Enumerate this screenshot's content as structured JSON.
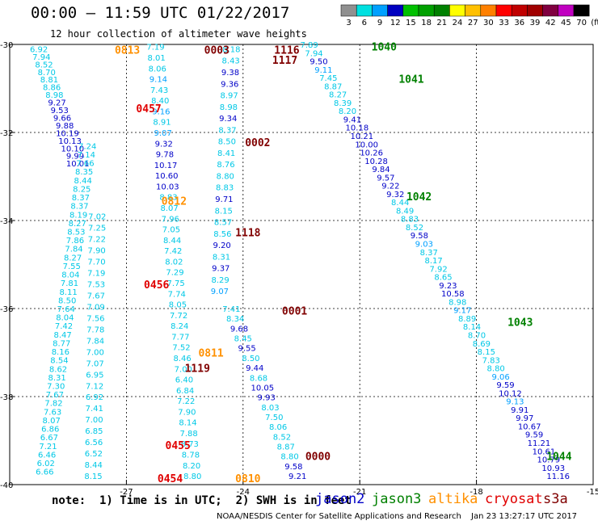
{
  "header": {
    "title": "00:00 – 11:59 UTC 01/22/2017",
    "subtitle": "12 hour collection of altimeter wave heights"
  },
  "color_scale": {
    "labels": [
      "3",
      "6",
      "9",
      "12",
      "15",
      "18",
      "21",
      "24",
      "27",
      "30",
      "33",
      "36",
      "39",
      "42",
      "45",
      "70",
      "(ft)"
    ],
    "colors": [
      "#909090",
      "#00e0e0",
      "#00a0ff",
      "#0000c0",
      "#00c000",
      "#00a000",
      "#008000",
      "#ffff00",
      "#ffc000",
      "#ff8000",
      "#ff0000",
      "#c00000",
      "#a00000",
      "#800040",
      "#c000c0",
      "#000000"
    ]
  },
  "notes": {
    "text": "note:  1) Time is in UTC;  2) SWH is in feet"
  },
  "satellites": [
    {
      "name": "jason2",
      "color": "#0000c8"
    },
    {
      "name": "jason3",
      "color": "#008000"
    },
    {
      "name": "altika",
      "color": "#ff9000"
    },
    {
      "name": "cryosat",
      "color": "#e00000"
    },
    {
      "name": "s3a",
      "color": "#800000"
    }
  ],
  "footer": {
    "credit": "NOAA/NESDIS Center for Satellite Applications and Research",
    "timestamp": "Jan 23 13:27:17 UTC 2017"
  },
  "chart_data": {
    "type": "scatter",
    "xlim": [
      -30,
      -15
    ],
    "ylim": [
      -40,
      -30
    ],
    "xticks": [
      -27,
      -24,
      -21,
      -18,
      -15
    ],
    "yticks": [
      -30,
      -32,
      -34,
      -36,
      -38,
      -40
    ],
    "x_tick_labels": [
      "-27",
      "-24",
      "-21",
      "-18",
      "-15"
    ],
    "y_tick_labels": [
      "-30",
      "-32",
      "-34",
      "-36",
      "-38",
      "-40"
    ],
    "grid": true,
    "value_colors": {
      "low": "#00c8e6",
      "mid": "#00a0ff",
      "high": "#0000c8"
    },
    "tracks": [
      {
        "name": "track-a",
        "x0": -29.25,
        "x1": -28.25,
        "y0": -30.1,
        "y1": -32.7,
        "values": [
          "6.92",
          "7.94",
          "8.52",
          "8.70",
          "8.81",
          "8.86",
          "8.98",
          "9.27",
          "9.53",
          "9.66",
          "9.88",
          "10.19",
          "10.13",
          "10.10",
          "9.99",
          "10.01"
        ]
      },
      {
        "name": "track-b",
        "x0": -28.0,
        "x1": -29.1,
        "y0": -32.3,
        "y1": -39.7,
        "values": [
          "7.24",
          "7.14",
          "7.66",
          "8.35",
          "8.44",
          "8.25",
          "8.37",
          "8.37",
          "8.19",
          "8.27",
          "8.53",
          "7.86",
          "7.84",
          "8.27",
          "7.55",
          "8.04",
          "7.81",
          "8.11",
          "8.50",
          "7.64",
          "8.04",
          "7.42",
          "8.47",
          "8.77",
          "8.16",
          "8.54",
          "8.62",
          "8.31",
          "7.30",
          "7.67",
          "7.82",
          "7.63",
          "8.07",
          "6.86",
          "6.67",
          "7.21",
          "6.46",
          "6.02",
          "6.66"
        ]
      },
      {
        "name": "track-c",
        "x0": -27.75,
        "x1": -27.85,
        "y0": -33.9,
        "y1": -39.8,
        "values": [
          "7.02",
          "7.25",
          "7.22",
          "7.90",
          "7.70",
          "7.19",
          "7.53",
          "7.67",
          "7.09",
          "7.56",
          "7.78",
          "7.84",
          "7.00",
          "7.07",
          "6.95",
          "7.12",
          "6.92",
          "7.41",
          "7.00",
          "6.85",
          "6.56",
          "6.52",
          "8.44",
          "8.15"
        ]
      },
      {
        "name": "track-d",
        "x0": -26.25,
        "x1": -25.3,
        "y0": -30.05,
        "y1": -39.8,
        "values": [
          "7.19",
          "8.01",
          "8.06",
          "9.14",
          "7.43",
          "8.40",
          "9.16",
          "8.91",
          "9.07",
          "9.32",
          "9.78",
          "10.17",
          "10.60",
          "10.03",
          "8.83",
          "8.07",
          "7.96",
          "7.05",
          "8.44",
          "7.42",
          "8.02",
          "7.29",
          "7.75",
          "7.74",
          "8.05",
          "7.72",
          "8.24",
          "7.77",
          "7.52",
          "8.46",
          "7.00",
          "6.40",
          "6.84",
          "7.22",
          "7.90",
          "8.14",
          "7.88",
          "8.73",
          "8.78",
          "8.20",
          "8.80"
        ]
      },
      {
        "name": "track-e",
        "x0": -24.3,
        "x1": -24.6,
        "y0": -30.1,
        "y1": -35.6,
        "values": [
          "8.18",
          "8.43",
          "9.38",
          "9.36",
          "8.97",
          "8.98",
          "9.34",
          "8.37",
          "8.50",
          "8.41",
          "8.76",
          "8.80",
          "8.83",
          "9.71",
          "8.15",
          "8.57",
          "8.56",
          "9.20",
          "8.31",
          "9.37",
          "8.29",
          "9.07"
        ]
      },
      {
        "name": "track-f",
        "x0": -24.3,
        "x1": -22.6,
        "y0": -36.0,
        "y1": -39.8,
        "values": [
          "7.41",
          "8.34",
          "9.68",
          "8.45",
          "9.55",
          "8.50",
          "9.44",
          "8.68",
          "10.05",
          "9.93",
          "8.03",
          "7.50",
          "8.06",
          "8.52",
          "8.87",
          "8.80",
          "9.58",
          "9.21"
        ]
      },
      {
        "name": "track-g",
        "x0": -22.3,
        "x1": -15.9,
        "y0": -30.0,
        "y1": -39.8,
        "values": [
          "7.89",
          "7.94",
          "9.50",
          "9.11",
          "7.45",
          "8.87",
          "8.27",
          "8.39",
          "8.20",
          "9.41",
          "10.18",
          "10.21",
          "10.00",
          "10.26",
          "10.28",
          "9.84",
          "9.57",
          "9.22",
          "9.32",
          "8.44",
          "8.49",
          "8.83",
          "8.52",
          "9.58",
          "9.03",
          "8.37",
          "8.17",
          "7.92",
          "8.65",
          "9.23",
          "10.58",
          "8.98",
          "9.17",
          "8.89",
          "8.14",
          "8.70",
          "8.69",
          "8.15",
          "7.83",
          "8.80",
          "9.06",
          "9.59",
          "10.12",
          "9.13",
          "9.91",
          "9.97",
          "10.67",
          "9.59",
          "11.21",
          "10.61",
          "10.79",
          "10.93",
          "11.16"
        ]
      }
    ],
    "pass_labels": [
      {
        "text": "0813",
        "x": -27.3,
        "y": -30.12,
        "color": "#ff9000"
      },
      {
        "text": "0003",
        "x": -25.0,
        "y": -30.12,
        "color": "#800000"
      },
      {
        "text": "1116",
        "x": -23.2,
        "y": -30.12,
        "color": "#800000"
      },
      {
        "text": "1117",
        "x": -23.25,
        "y": -30.35,
        "color": "#800000"
      },
      {
        "text": "1040",
        "x": -20.7,
        "y": -30.05,
        "color": "#008000"
      },
      {
        "text": "1041",
        "x": -20.0,
        "y": -30.78,
        "color": "#008000"
      },
      {
        "text": "0457",
        "x": -26.75,
        "y": -31.45,
        "color": "#e00000"
      },
      {
        "text": "0002",
        "x": -23.95,
        "y": -32.22,
        "color": "#800000"
      },
      {
        "text": "0812",
        "x": -26.1,
        "y": -33.55,
        "color": "#ff9000"
      },
      {
        "text": "1042",
        "x": -19.8,
        "y": -33.45,
        "color": "#008000"
      },
      {
        "text": "1118",
        "x": -24.2,
        "y": -34.27,
        "color": "#800000"
      },
      {
        "text": "0456",
        "x": -26.55,
        "y": -35.45,
        "color": "#e00000"
      },
      {
        "text": "0001",
        "x": -23.0,
        "y": -36.05,
        "color": "#800000"
      },
      {
        "text": "1043",
        "x": -17.2,
        "y": -36.3,
        "color": "#008000"
      },
      {
        "text": "0811",
        "x": -25.15,
        "y": -37.0,
        "color": "#ff9000"
      },
      {
        "text": "1119",
        "x": -25.5,
        "y": -37.35,
        "color": "#800000"
      },
      {
        "text": "0455",
        "x": -26.0,
        "y": -39.1,
        "color": "#e00000"
      },
      {
        "text": "0000",
        "x": -22.4,
        "y": -39.35,
        "color": "#800000"
      },
      {
        "text": "1044",
        "x": -16.2,
        "y": -39.35,
        "color": "#008000"
      },
      {
        "text": "0454",
        "x": -26.2,
        "y": -39.85,
        "color": "#e00000"
      },
      {
        "text": "0810",
        "x": -24.2,
        "y": -39.85,
        "color": "#ff9000"
      }
    ]
  }
}
